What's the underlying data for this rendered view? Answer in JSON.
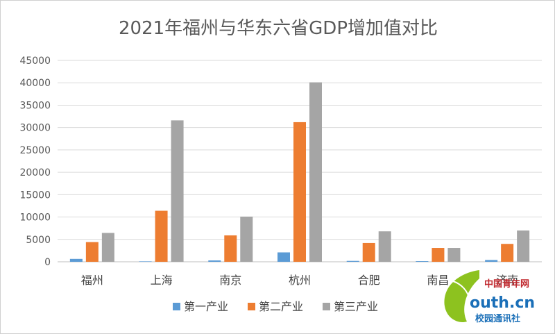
{
  "chart_data": {
    "type": "bar",
    "title": "2021年福州与华东六省GDP增加值对比",
    "xlabel": "",
    "ylabel": "",
    "categories": [
      "福州",
      "上海",
      "南京",
      "杭州",
      "合肥",
      "南昌",
      "济南"
    ],
    "series": [
      {
        "name": "第一产业",
        "color": "#5b9bd5",
        "values": [
          650,
          100,
          300,
          2100,
          200,
          150,
          400
        ]
      },
      {
        "name": "第二产业",
        "color": "#ed7d31",
        "values": [
          4400,
          11400,
          5900,
          31200,
          4200,
          3100,
          4000
        ]
      },
      {
        "name": "第三产业",
        "color": "#a5a5a5",
        "values": [
          6450,
          31600,
          10100,
          40100,
          6800,
          3100,
          7000
        ]
      }
    ],
    "ylim": [
      0,
      45000
    ],
    "yticks": [
      "45000",
      "40000",
      "35000",
      "30000",
      "25000",
      "20000",
      "15000",
      "10000",
      "5000",
      "0"
    ],
    "grid": true,
    "legend_position": "bottom"
  },
  "watermark": {
    "line1": "中国青年网",
    "line2": "outh.cn",
    "line3": "校园通讯社",
    "leaf_color": "#8dc21f"
  }
}
